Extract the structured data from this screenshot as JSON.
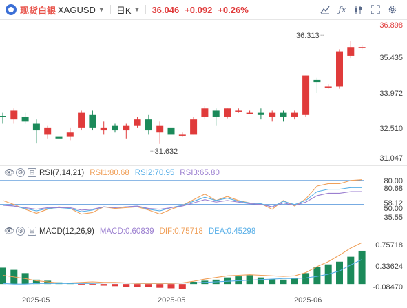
{
  "toolbar": {
    "name": "现货白银",
    "code": "XAGUSD",
    "timeframe": "日K",
    "price": "36.046",
    "change": "+0.092",
    "change_pct": "+0.26%",
    "icons": [
      "chart-type-icon",
      "indicator-icon",
      "candle-style-icon",
      "fullscreen-icon",
      "settings-icon"
    ]
  },
  "price_axis": [
    "36.898",
    "35.435",
    "33.972",
    "32.510",
    "31.047"
  ],
  "high_label": "36.313",
  "low_label": "31.632",
  "rsi": {
    "title": "RSI(7,14,21)",
    "rsi1_label": "RSI1:80.68",
    "rsi2_label": "RSI2:70.95",
    "rsi3_label": "RSI3:65.80",
    "axis": [
      "80.00",
      "80.68",
      "58.12",
      "50.00",
      "35.55"
    ]
  },
  "macd": {
    "title": "MACD(12,26,9)",
    "macd_label": "MACD:0.60839",
    "dif_label": "DIF:0.75718",
    "dea_label": "DEA:0.45298",
    "axis": [
      "0.75718",
      "0.33624",
      "-0.08470"
    ]
  },
  "x_axis": [
    "2025-05",
    "2025-05",
    "2025-06"
  ],
  "colors": {
    "up": "#e03b3b",
    "down": "#1b8a5a",
    "rsi1": "#f0a05a",
    "rsi2": "#5ab0e8",
    "rsi3": "#9b7fd0",
    "dif": "#f0a05a",
    "dea": "#5ab0e8",
    "ref_line": "#4a8fd8"
  },
  "chart_data": [
    {
      "type": "candlestick",
      "title": "现货白银 XAGUSD 日K",
      "ylim": [
        30.9,
        37.0
      ],
      "candles": [
        {
          "o": 32.9,
          "h": 33.05,
          "l": 32.55,
          "c": 32.85
        },
        {
          "o": 32.75,
          "h": 33.25,
          "l": 32.55,
          "c": 33.15
        },
        {
          "o": 32.85,
          "h": 33.05,
          "l": 32.55,
          "c": 32.65
        },
        {
          "o": 32.55,
          "h": 32.75,
          "l": 31.65,
          "c": 32.25
        },
        {
          "o": 32.05,
          "h": 32.45,
          "l": 31.85,
          "c": 32.35
        },
        {
          "o": 31.95,
          "h": 32.05,
          "l": 31.75,
          "c": 31.85
        },
        {
          "o": 31.95,
          "h": 32.35,
          "l": 31.8,
          "c": 32.15
        },
        {
          "o": 32.35,
          "h": 33.15,
          "l": 32.25,
          "c": 33.05
        },
        {
          "o": 32.95,
          "h": 33.15,
          "l": 32.25,
          "c": 32.35
        },
        {
          "o": 32.25,
          "h": 32.65,
          "l": 32.05,
          "c": 32.35
        },
        {
          "o": 32.45,
          "h": 32.55,
          "l": 32.15,
          "c": 32.25
        },
        {
          "o": 32.25,
          "h": 32.55,
          "l": 31.85,
          "c": 32.45
        },
        {
          "o": 32.45,
          "h": 32.85,
          "l": 32.35,
          "c": 32.75
        },
        {
          "o": 32.75,
          "h": 32.95,
          "l": 32.05,
          "c": 32.25
        },
        {
          "o": 32.15,
          "h": 32.65,
          "l": 31.63,
          "c": 32.45
        },
        {
          "o": 32.35,
          "h": 32.55,
          "l": 31.85,
          "c": 32.05
        },
        {
          "o": 32.05,
          "h": 32.15,
          "l": 31.95,
          "c": 32.05
        },
        {
          "o": 32.05,
          "h": 32.85,
          "l": 32.05,
          "c": 32.75
        },
        {
          "o": 32.85,
          "h": 33.35,
          "l": 32.75,
          "c": 33.25
        },
        {
          "o": 33.15,
          "h": 33.25,
          "l": 32.45,
          "c": 32.85
        },
        {
          "o": 32.85,
          "h": 33.25,
          "l": 32.8,
          "c": 33.25
        },
        {
          "o": 33.15,
          "h": 33.25,
          "l": 33.05,
          "c": 33.15
        },
        {
          "o": 33.05,
          "h": 33.15,
          "l": 33.02,
          "c": 33.05
        },
        {
          "o": 33.05,
          "h": 33.25,
          "l": 32.75,
          "c": 32.95
        },
        {
          "o": 32.85,
          "h": 33.15,
          "l": 32.65,
          "c": 33.05
        },
        {
          "o": 33.05,
          "h": 33.15,
          "l": 32.65,
          "c": 32.85
        },
        {
          "o": 32.85,
          "h": 33.15,
          "l": 32.75,
          "c": 33.05
        },
        {
          "o": 32.95,
          "h": 34.75,
          "l": 32.85,
          "c": 34.75
        },
        {
          "o": 34.55,
          "h": 34.65,
          "l": 33.95,
          "c": 34.45
        },
        {
          "o": 34.25,
          "h": 34.35,
          "l": 34.15,
          "c": 34.25
        },
        {
          "o": 34.25,
          "h": 35.95,
          "l": 34.15,
          "c": 35.85
        },
        {
          "o": 35.65,
          "h": 36.31,
          "l": 35.55,
          "c": 36.05
        },
        {
          "o": 36.05,
          "h": 36.15,
          "l": 35.95,
          "c": 36.05
        }
      ]
    },
    {
      "type": "line",
      "title": "RSI(7,14,21)",
      "ylim": [
        30,
        85
      ],
      "reference_lines": [
        80,
        50
      ],
      "series": [
        {
          "name": "RSI1",
          "values": [
            55,
            50,
            44,
            39,
            44,
            47,
            45,
            38,
            40,
            47,
            45,
            46,
            47,
            43,
            38,
            44,
            49,
            56,
            63,
            55,
            60,
            55,
            52,
            51,
            44,
            55,
            48,
            57,
            73,
            76,
            76,
            80,
            81
          ]
        },
        {
          "name": "RSI2",
          "values": [
            50,
            48,
            45,
            42,
            45,
            46,
            45,
            41,
            43,
            47,
            46,
            47,
            48,
            44,
            42,
            46,
            49,
            54,
            59,
            55,
            58,
            54,
            52,
            51,
            47,
            54,
            50,
            55,
            66,
            69,
            69,
            71,
            71
          ]
        },
        {
          "name": "RSI3",
          "values": [
            49,
            48,
            46,
            44,
            46,
            46,
            46,
            43,
            44,
            47,
            46,
            47,
            48,
            45,
            44,
            46,
            48,
            52,
            56,
            53,
            55,
            53,
            51,
            50,
            47,
            52,
            49,
            53,
            61,
            64,
            64,
            66,
            66
          ]
        }
      ]
    },
    {
      "type": "bar",
      "title": "MACD(12,26,9)",
      "ylim": [
        -0.15,
        0.85
      ],
      "series": [
        {
          "name": "MACD",
          "values": [
            0.3,
            0.26,
            0.2,
            0.08,
            0.06,
            0.03,
            0.02,
            -0.01,
            -0.02,
            -0.03,
            -0.04,
            -0.06,
            -0.05,
            -0.06,
            -0.07,
            -0.08,
            -0.09,
            0.04,
            0.06,
            0.08,
            0.12,
            0.14,
            0.16,
            0.12,
            0.09,
            0.08,
            0.11,
            0.2,
            0.31,
            0.36,
            0.41,
            0.5,
            0.61
          ]
        },
        {
          "name": "DIF",
          "values": [
            0.16,
            0.13,
            0.1,
            0.06,
            0.04,
            0.02,
            0.02,
            0.03,
            0.04,
            0.03,
            0.03,
            0.02,
            0.01,
            0.01,
            0.01,
            0.01,
            0.02,
            0.05,
            0.09,
            0.12,
            0.15,
            0.16,
            0.17,
            0.16,
            0.15,
            0.14,
            0.15,
            0.21,
            0.32,
            0.41,
            0.53,
            0.66,
            0.76
          ]
        },
        {
          "name": "DEA",
          "values": [
            0.01,
            0.0,
            0.0,
            0.01,
            0.01,
            0.01,
            0.01,
            0.01,
            0.01,
            0.02,
            0.02,
            0.02,
            0.02,
            0.02,
            0.02,
            0.02,
            0.02,
            0.02,
            0.03,
            0.04,
            0.05,
            0.06,
            0.07,
            0.08,
            0.09,
            0.1,
            0.1,
            0.11,
            0.14,
            0.18,
            0.24,
            0.35,
            0.45
          ]
        }
      ]
    }
  ]
}
